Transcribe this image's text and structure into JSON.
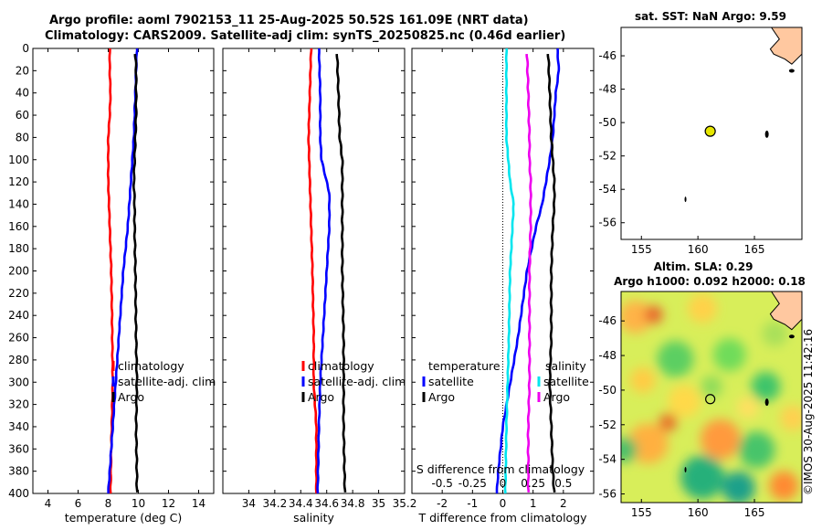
{
  "header": {
    "title_line1": "Argo profile: aoml 7902153_11 25-Aug-2025 50.52S 161.09E (NRT data)",
    "title_line2": "Climatology: CARS2009. Satellite-adj clim: synTS_20250825.nc (0.46d earlier)"
  },
  "watermark": "©IMOS 30-Aug-2025 11:42:16",
  "colors": {
    "climatology": "#ff0000",
    "satellite": "#0000ff",
    "argo": "#000000",
    "temp_sat_diff": "#0000ff",
    "sal_sat_diff": "#00e5ee",
    "sal_argo_diff": "#ee00ee",
    "land": "#ffc8a0",
    "sst_bg": "#ffffff",
    "marker": "#e6e600"
  },
  "chart_data": [
    {
      "type": "line",
      "name": "temperature-profile",
      "xlabel": "temperature (deg C)",
      "ylabel": "",
      "xlim": [
        3,
        15
      ],
      "ylim": [
        400,
        0
      ],
      "x_ticks": [
        4,
        6,
        8,
        10,
        12,
        14
      ],
      "x_tick_labels": [
        "4",
        "6",
        "8",
        "10",
        "12",
        "14"
      ],
      "y_ticks": [
        0,
        20,
        40,
        60,
        80,
        100,
        120,
        140,
        160,
        180,
        200,
        220,
        240,
        260,
        280,
        300,
        320,
        340,
        360,
        380,
        400
      ],
      "y_tick_labels": [
        "0",
        "20",
        "40",
        "60",
        "80",
        "100",
        "120",
        "140",
        "160",
        "180",
        "200",
        "220",
        "240",
        "260",
        "280",
        "300",
        "320",
        "340",
        "360",
        "380",
        "400"
      ],
      "legend": [
        "climatology",
        "satellite-adj. clim",
        "Argo"
      ],
      "legend_position": "lower-right",
      "series": [
        {
          "name": "climatology",
          "color": "#ff0000",
          "depth": [
            0,
            20,
            40,
            60,
            80,
            100,
            120,
            140,
            160,
            200,
            240,
            300,
            360,
            400
          ],
          "values": [
            8.1,
            8.1,
            8.15,
            8.1,
            8.0,
            8.0,
            8.0,
            8.05,
            8.1,
            8.2,
            8.25,
            8.3,
            8.2,
            8.15
          ]
        },
        {
          "name": "satellite-adj. clim",
          "color": "#0000ff",
          "depth": [
            0,
            20,
            40,
            60,
            80,
            100,
            120,
            140,
            160,
            200,
            260,
            300,
            340,
            380,
            400
          ],
          "values": [
            9.9,
            9.85,
            9.8,
            9.75,
            9.7,
            9.6,
            9.5,
            9.4,
            9.3,
            9.0,
            8.7,
            8.5,
            8.3,
            8.1,
            8.0
          ]
        },
        {
          "name": "Argo",
          "color": "#000000",
          "depth": [
            5,
            20,
            40,
            60,
            80,
            100,
            120,
            140,
            160,
            200,
            260,
            300,
            340,
            380,
            400
          ],
          "values": [
            9.8,
            9.85,
            9.85,
            9.85,
            9.8,
            9.75,
            9.7,
            9.75,
            9.75,
            9.8,
            9.85,
            9.9,
            9.85,
            9.9,
            9.9
          ]
        }
      ]
    },
    {
      "type": "line",
      "name": "salinity-profile",
      "xlabel": "salinity",
      "xlim": [
        33.8,
        35.2
      ],
      "ylim": [
        400,
        0
      ],
      "x_ticks": [
        34,
        34.2,
        34.4,
        34.6,
        34.8,
        35,
        35.2
      ],
      "x_tick_labels": [
        "34",
        "34.2",
        "34.4",
        "34.6",
        "34.8",
        "35",
        "35.2"
      ],
      "legend": [
        "climatology",
        "satellite-adj. clim",
        "Argo"
      ],
      "legend_position": "lower-right",
      "series": [
        {
          "name": "climatology",
          "color": "#ff0000",
          "depth": [
            0,
            40,
            80,
            120,
            160,
            200,
            260,
            300,
            340,
            400
          ],
          "values": [
            34.48,
            34.47,
            34.46,
            34.47,
            34.48,
            34.49,
            34.5,
            34.5,
            34.52,
            34.52
          ]
        },
        {
          "name": "satellite-adj. clim",
          "color": "#0000ff",
          "depth": [
            0,
            40,
            80,
            100,
            120,
            130,
            160,
            200,
            260,
            300,
            340,
            400
          ],
          "values": [
            34.54,
            34.55,
            34.55,
            34.56,
            34.6,
            34.62,
            34.62,
            34.6,
            34.57,
            34.55,
            34.54,
            34.53
          ]
        },
        {
          "name": "Argo",
          "color": "#000000",
          "depth": [
            5,
            40,
            80,
            100,
            120,
            160,
            200,
            260,
            300,
            340,
            400
          ],
          "values": [
            34.68,
            34.69,
            34.7,
            34.72,
            34.72,
            34.72,
            34.72,
            34.73,
            34.73,
            34.73,
            34.74
          ]
        }
      ]
    },
    {
      "type": "line",
      "name": "difference-profile",
      "xlabel": "T difference from climatology",
      "top_label": "S difference from climatology",
      "xlim": [
        -3,
        3
      ],
      "ylim": [
        400,
        0
      ],
      "x_ticks": [
        -2,
        -1,
        0,
        1,
        2
      ],
      "x_tick_labels": [
        "-2",
        "-1",
        "0",
        "1",
        "2"
      ],
      "top_ticks": [
        -0.5,
        -0.25,
        0,
        0.25,
        0.5
      ],
      "top_tick_labels": [
        "-0.5",
        "-0.25",
        "0",
        "0.25",
        "0.5"
      ],
      "top_xlim": [
        -0.75,
        0.75
      ],
      "legend_left_title": "temperature",
      "legend_right_title": "salinity",
      "legend_left": [
        "satellite",
        "Argo"
      ],
      "legend_right": [
        "satellite",
        "Argo"
      ],
      "series": [
        {
          "name": "T satellite",
          "axis": "T",
          "color": "#0000ff",
          "depth": [
            0,
            20,
            40,
            60,
            80,
            100,
            140,
            160,
            200,
            260,
            300,
            340,
            380,
            400
          ],
          "values": [
            1.8,
            1.85,
            1.75,
            1.7,
            1.65,
            1.55,
            1.3,
            1.1,
            0.8,
            0.5,
            0.25,
            0.0,
            -0.15,
            -0.2
          ]
        },
        {
          "name": "T Argo",
          "axis": "T",
          "color": "#000000",
          "depth": [
            5,
            40,
            80,
            100,
            120,
            140,
            160,
            200,
            260,
            300,
            340,
            380,
            400
          ],
          "values": [
            1.5,
            1.55,
            1.6,
            1.65,
            1.7,
            1.7,
            1.65,
            1.6,
            1.6,
            1.55,
            1.6,
            1.65,
            1.7
          ]
        },
        {
          "name": "S satellite",
          "axis": "S",
          "color": "#00e5ee",
          "depth": [
            0,
            40,
            80,
            120,
            140,
            160,
            200,
            260,
            300,
            340,
            400
          ],
          "values": [
            0.03,
            0.03,
            0.03,
            0.06,
            0.09,
            0.08,
            0.06,
            0.05,
            0.04,
            0.03,
            0.02
          ]
        },
        {
          "name": "S Argo",
          "axis": "S",
          "color": "#ee00ee",
          "depth": [
            5,
            40,
            80,
            100,
            120,
            160,
            200,
            260,
            300,
            340,
            400
          ],
          "values": [
            0.2,
            0.21,
            0.22,
            0.22,
            0.23,
            0.23,
            0.22,
            0.22,
            0.22,
            0.21,
            0.21
          ]
        }
      ]
    },
    {
      "type": "heatmap",
      "name": "sst-map",
      "title": "sat. SST: NaN Argo: 9.59",
      "xlim": [
        153.2,
        169.2
      ],
      "ylim": [
        -57,
        -44.3
      ],
      "x_ticks": [
        155,
        160,
        165
      ],
      "x_tick_labels": [
        "155",
        "160",
        "165"
      ],
      "y_ticks": [
        -46,
        -48,
        -50,
        -52,
        -54,
        -56
      ],
      "y_tick_labels": [
        "-46",
        "-48",
        "-50",
        "-52",
        "-54",
        "-56"
      ],
      "argo_position": {
        "lon": 161.09,
        "lat": -50.52
      }
    },
    {
      "type": "heatmap",
      "name": "sla-map",
      "title": "Altim. SLA: 0.29",
      "subtitle": "Argo h1000: 0.092 h2000: 0.18",
      "xlim": [
        153.2,
        169.2
      ],
      "ylim": [
        -56.5,
        -44.3
      ],
      "x_ticks": [
        155,
        160,
        165
      ],
      "x_tick_labels": [
        "155",
        "160",
        "165"
      ],
      "y_ticks": [
        -46,
        -48,
        -50,
        -52,
        -54,
        -56
      ],
      "y_tick_labels": [
        "-46",
        "-48",
        "-50",
        "-52",
        "-54",
        "-56"
      ],
      "argo_position": {
        "lon": 161.09,
        "lat": -50.52
      }
    }
  ]
}
